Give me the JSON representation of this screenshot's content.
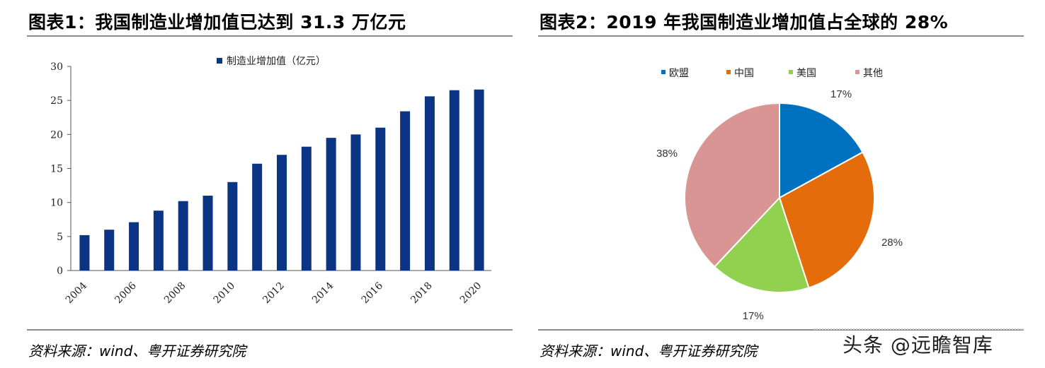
{
  "panel1": {
    "title": "图表1：我国制造业增加值已达到 31.3 万亿元",
    "source": "资料来源：wind、粤开证券研究院"
  },
  "panel2": {
    "title": "图表2：2019 年我国制造业增加值占全球的 28%",
    "source": "资料来源：wind、粤开证券研究院"
  },
  "watermark": "头条 @远瞻智库",
  "chart_data": [
    {
      "type": "bar",
      "title": "",
      "legend": "制造业增加值（亿元）",
      "legend_position": "top-center",
      "categories": [
        "2004",
        "2005",
        "2006",
        "2007",
        "2008",
        "2009",
        "2010",
        "2011",
        "2012",
        "2013",
        "2014",
        "2015",
        "2016",
        "2017",
        "2018",
        "2019",
        "2020"
      ],
      "x_tick_labels": [
        "2004",
        "2006",
        "2008",
        "2010",
        "2012",
        "2014",
        "2016",
        "2018",
        "2020"
      ],
      "values": [
        5.2,
        6.0,
        7.1,
        8.8,
        10.2,
        11.0,
        13.0,
        15.7,
        17.0,
        18.2,
        19.5,
        20.0,
        21.0,
        23.4,
        25.6,
        26.5,
        26.6
      ],
      "ylim": [
        0,
        30
      ],
      "yticks": [
        0,
        5,
        10,
        15,
        20,
        25,
        30
      ],
      "xlabel": "",
      "ylabel": "",
      "color": "#0b3584",
      "grid": false
    },
    {
      "type": "pie",
      "legend_position": "top",
      "labels": [
        "欧盟",
        "中国",
        "美国",
        "其他"
      ],
      "values": [
        17,
        28,
        17,
        38
      ],
      "value_labels": [
        "17%",
        "28%",
        "17%",
        "38%"
      ],
      "colors": [
        "#0070c0",
        "#e46c0a",
        "#92d050",
        "#d99594"
      ]
    }
  ]
}
